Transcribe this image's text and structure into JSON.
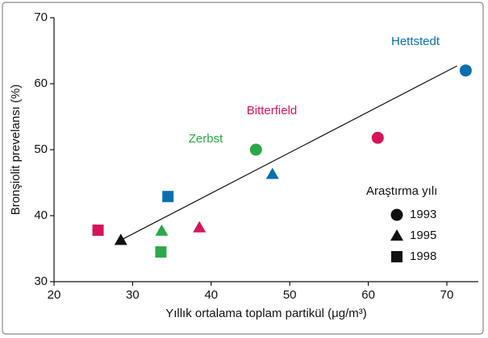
{
  "chart_data": {
    "type": "scatter",
    "xlabel": "Yıllık ortalama toplam partikül (μg/m³)",
    "ylabel": "Bronşiolit prevelansı (%)",
    "xlim": [
      20,
      74
    ],
    "xticks": [
      20,
      30,
      40,
      50,
      60,
      70
    ],
    "ylim": [
      30,
      70
    ],
    "yticks": [
      30,
      40,
      50,
      60,
      70
    ],
    "legend_title": "Araştırma yılı",
    "legend": "right",
    "series": [
      {
        "name": "1993",
        "marker": "circle",
        "x": [
          45.7,
          61.2,
          72.4
        ],
        "values": [
          50,
          51.8,
          62
        ],
        "colors": [
          "#2aa84a",
          "#d6145a",
          "#0a6fae"
        ]
      },
      {
        "name": "1995",
        "marker": "triangle",
        "x": [
          28.5,
          33.7,
          38.5,
          47.8
        ],
        "values": [
          36.3,
          37.7,
          38.2,
          46.3
        ],
        "colors": [
          "#111111",
          "#2aa84a",
          "#d6145a",
          "#0a6fae"
        ]
      },
      {
        "name": "1998",
        "marker": "square",
        "x": [
          25.6,
          33.6,
          34.5
        ],
        "values": [
          37.8,
          34.5,
          42.9
        ],
        "colors": [
          "#d6145a",
          "#2aa84a",
          "#0a6fae"
        ]
      }
    ],
    "trend_line": {
      "x": [
        28.5,
        71.3
      ],
      "values": [
        36.3,
        62.7
      ]
    },
    "annotations": [
      {
        "text": "Hettstedt",
        "color": "#0a6fae"
      },
      {
        "text": "Bitterfield",
        "color": "#d6145a"
      },
      {
        "text": "Zerbst",
        "color": "#2aa84a"
      }
    ]
  }
}
